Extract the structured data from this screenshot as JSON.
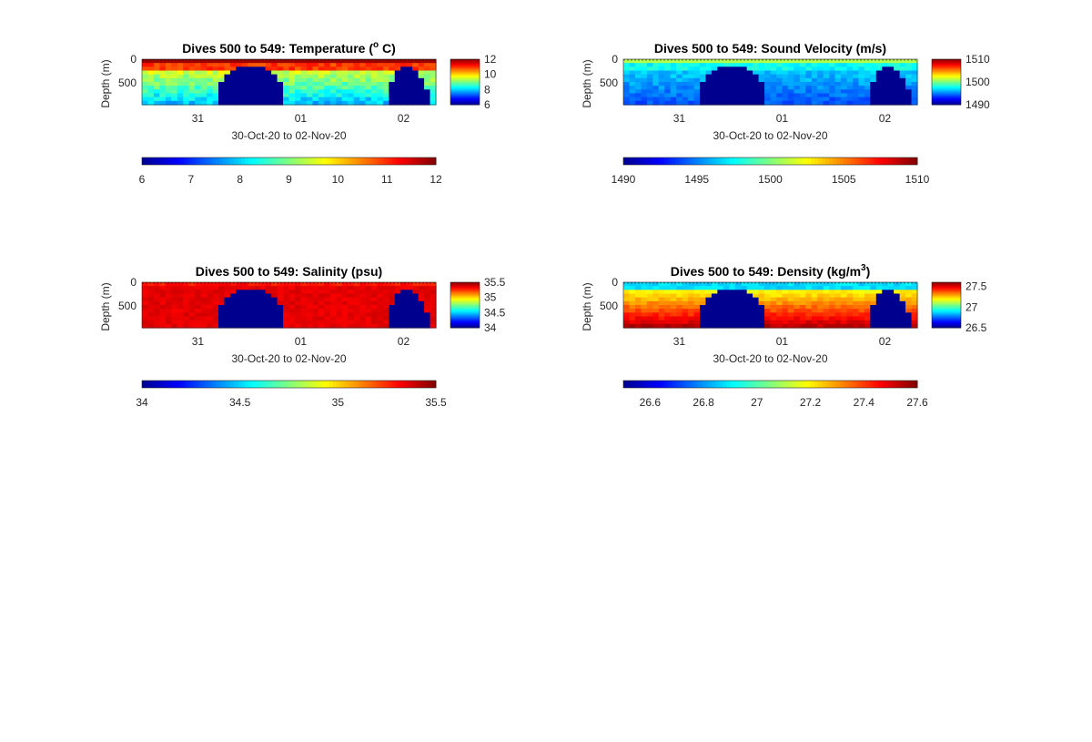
{
  "figure": {
    "colormap": "jet",
    "colormap_stops": [
      "#00008f",
      "#0000ff",
      "#00ffff",
      "#ffff00",
      "#ff0000",
      "#800000"
    ],
    "background": "#ffffff"
  },
  "chart_data": [
    {
      "type": "heatmap",
      "title_prefix": "Dives 500 to 549: Temperature (",
      "title_sup": "o",
      "title_suffix": " C)",
      "xlabel": "30-Oct-20 to 02-Nov-20",
      "ylabel": "Depth (m)",
      "x_ticks": [
        "31",
        "01",
        "02"
      ],
      "y_ticks": [
        "0",
        "500"
      ],
      "y_reversed": true,
      "clim": [
        6,
        12
      ],
      "colorbar_side_ticks": [
        "12",
        "10",
        "8",
        "6"
      ],
      "colorbar_side_values": [
        12,
        10,
        8,
        6
      ],
      "colorbar_bottom_ticks": [
        "6",
        "7",
        "8",
        "9",
        "10",
        "11",
        "12"
      ],
      "colorbar_bottom_values": [
        6,
        7,
        8,
        9,
        10,
        11,
        12
      ],
      "pattern": "temperature"
    },
    {
      "type": "heatmap",
      "title_prefix": "Dives 500 to 549: Sound Velocity (m/s)",
      "title_sup": "",
      "title_suffix": "",
      "xlabel": "30-Oct-20 to 02-Nov-20",
      "ylabel": "Depth (m)",
      "x_ticks": [
        "31",
        "01",
        "02"
      ],
      "y_ticks": [
        "0",
        "500"
      ],
      "y_reversed": true,
      "clim": [
        1490,
        1510
      ],
      "colorbar_side_ticks": [
        "1510",
        "1500",
        "1490"
      ],
      "colorbar_side_values": [
        1510,
        1500,
        1490
      ],
      "colorbar_bottom_ticks": [
        "1490",
        "1495",
        "1500",
        "1505",
        "1510"
      ],
      "colorbar_bottom_values": [
        1490,
        1495,
        1500,
        1505,
        1510
      ],
      "pattern": "sound"
    },
    {
      "type": "heatmap",
      "title_prefix": "Dives 500 to 549: Salinity (psu)",
      "title_sup": "",
      "title_suffix": "",
      "xlabel": "30-Oct-20 to 02-Nov-20",
      "ylabel": "Depth (m)",
      "x_ticks": [
        "31",
        "01",
        "02"
      ],
      "y_ticks": [
        "0",
        "500"
      ],
      "y_reversed": true,
      "clim": [
        34,
        35.5
      ],
      "colorbar_side_ticks": [
        "35.5",
        "35",
        "34.5",
        "34"
      ],
      "colorbar_side_values": [
        35.5,
        35,
        34.5,
        34
      ],
      "colorbar_bottom_ticks": [
        "34",
        "34.5",
        "35",
        "35.5"
      ],
      "colorbar_bottom_values": [
        34,
        34.5,
        35,
        35.5
      ],
      "pattern": "salinity"
    },
    {
      "type": "heatmap",
      "title_prefix": "Dives 500 to 549: Density (kg/m",
      "title_sup": "3",
      "title_suffix": ")",
      "xlabel": "30-Oct-20 to 02-Nov-20",
      "ylabel": "Depth (m)",
      "x_ticks": [
        "31",
        "01",
        "02"
      ],
      "y_ticks": [
        "0",
        "500"
      ],
      "y_reversed": true,
      "clim": [
        26.5,
        27.6
      ],
      "colorbar_side_ticks": [
        "27.5",
        "27",
        "26.5"
      ],
      "colorbar_side_values": [
        27.5,
        27,
        26.5
      ],
      "colorbar_bottom_ticks": [
        "26.6",
        "26.8",
        "27",
        "27.2",
        "27.4",
        "27.6"
      ],
      "colorbar_bottom_values": [
        26.6,
        26.8,
        27,
        27.2,
        27.4,
        27.6
      ],
      "pattern": "density"
    }
  ]
}
